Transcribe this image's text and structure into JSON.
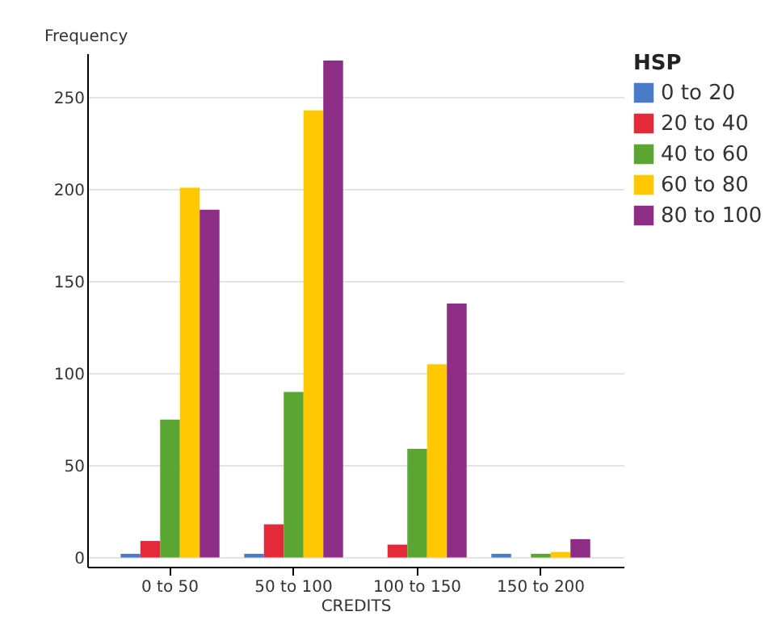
{
  "chart_data": {
    "type": "bar",
    "xlabel": "CREDITS",
    "ylabel": "Frequency",
    "legend_title": "HSP",
    "categories": [
      "0 to 50",
      "50 to 100",
      "100 to 150",
      "150 to 200"
    ],
    "series": [
      {
        "name": "0 to 20",
        "color": "#4a7bc8",
        "values": [
          2,
          2,
          0,
          2
        ]
      },
      {
        "name": "20 to 40",
        "color": "#e3293a",
        "values": [
          9,
          18,
          7,
          0
        ]
      },
      {
        "name": "40 to 60",
        "color": "#5ba532",
        "values": [
          75,
          90,
          59,
          2
        ]
      },
      {
        "name": "60 to 80",
        "color": "#ffc800",
        "values": [
          201,
          243,
          105,
          3
        ]
      },
      {
        "name": "80 to 100",
        "color": "#8e2d85",
        "values": [
          189,
          270,
          138,
          10
        ]
      }
    ],
    "ylim": [
      -5,
      274
    ],
    "yticks": [
      0,
      50,
      100,
      150,
      200,
      250
    ],
    "grid": "y",
    "legend": "right"
  }
}
